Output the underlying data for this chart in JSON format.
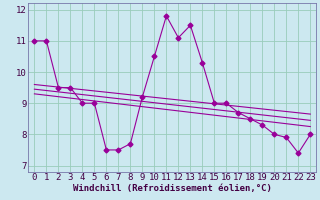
{
  "xlabel": "Windchill (Refroidissement éolien,°C)",
  "bg_color": "#cce8f0",
  "grid_color": "#99ccbb",
  "line_color": "#990099",
  "spine_color": "#7777aa",
  "xlim": [
    -0.5,
    23.5
  ],
  "ylim": [
    6.8,
    12.2
  ],
  "xticks": [
    0,
    1,
    2,
    3,
    4,
    5,
    6,
    7,
    8,
    9,
    10,
    11,
    12,
    13,
    14,
    15,
    16,
    17,
    18,
    19,
    20,
    21,
    22,
    23
  ],
  "yticks": [
    7,
    8,
    9,
    10,
    11,
    12
  ],
  "series1_x": [
    0,
    1,
    2,
    3,
    4,
    5,
    6,
    7,
    8,
    9,
    10,
    11,
    12,
    13,
    14,
    15,
    16,
    17,
    18,
    19,
    20,
    21,
    22,
    23
  ],
  "series1_y": [
    11.0,
    11.0,
    9.5,
    9.5,
    9.0,
    9.0,
    7.5,
    7.5,
    7.7,
    9.2,
    10.5,
    11.8,
    11.1,
    11.5,
    10.3,
    9.0,
    9.0,
    8.7,
    8.5,
    8.3,
    8.0,
    7.9,
    7.4,
    8.0
  ],
  "trend1_x": [
    0,
    23
  ],
  "trend1_y": [
    9.6,
    8.65
  ],
  "trend2_x": [
    0,
    23
  ],
  "trend2_y": [
    9.45,
    8.45
  ],
  "trend3_x": [
    0,
    23
  ],
  "trend3_y": [
    9.3,
    8.25
  ],
  "font_size": 6.5,
  "marker": "D",
  "marker_size": 2.5,
  "linewidth": 0.8
}
